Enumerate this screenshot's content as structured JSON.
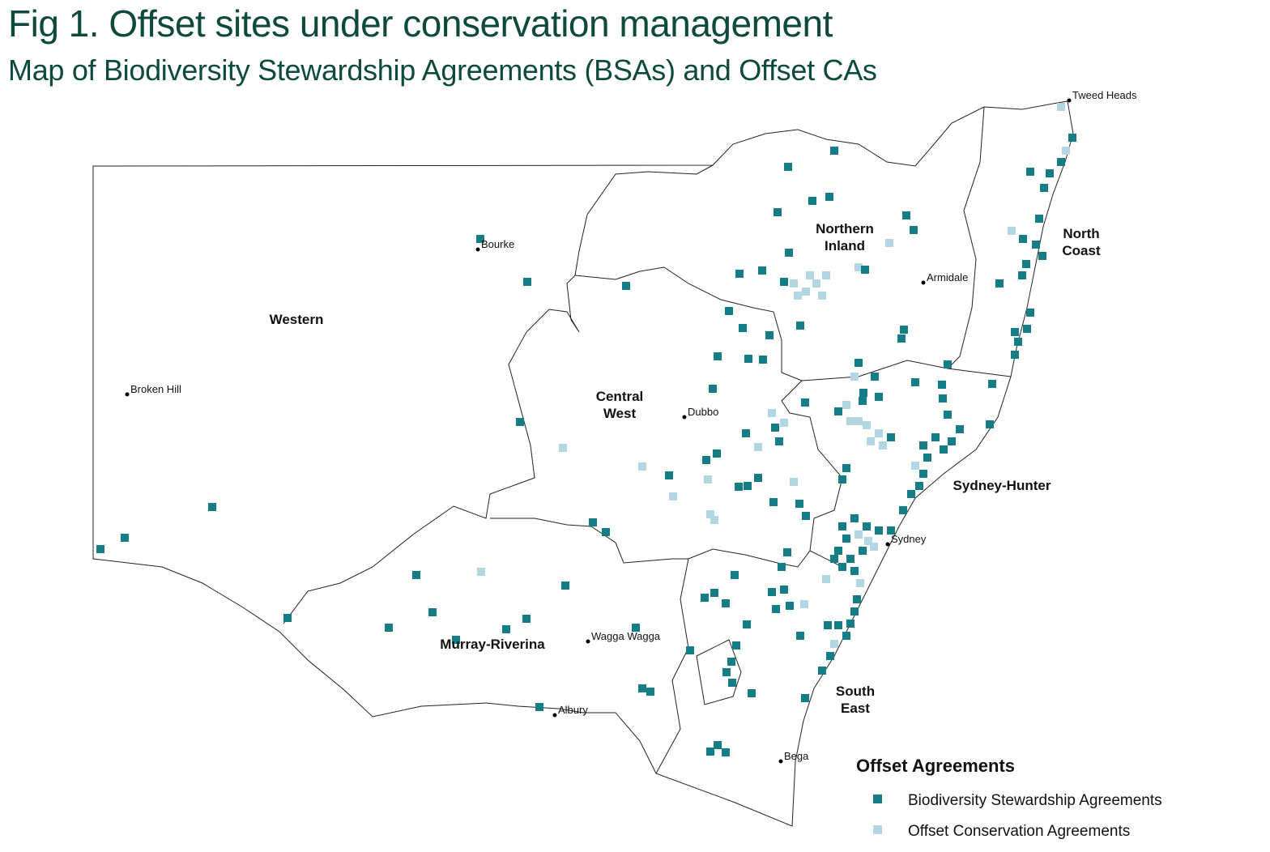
{
  "header": {
    "title": "Fig 1. Offset sites under conservation management",
    "subtitle": "Map of Biodiversity Stewardship Agreements (BSAs) and Offset CAs"
  },
  "regions": [
    {
      "lines": [
        "Western"
      ]
    },
    {
      "lines": [
        "Northern",
        "Inland"
      ]
    },
    {
      "lines": [
        "North",
        "Coast"
      ]
    },
    {
      "lines": [
        "Central",
        "West"
      ]
    },
    {
      "lines": [
        "Sydney-Hunter"
      ]
    },
    {
      "lines": [
        "Murray-Riverina"
      ]
    },
    {
      "lines": [
        "South",
        "East"
      ]
    }
  ],
  "towns": [
    "Tweed Heads",
    "Bourke",
    "Armidale",
    "Broken Hill",
    "Dubbo",
    "Sydney",
    "Wagga Wagga",
    "Albury",
    "Bega"
  ],
  "legend": {
    "title": "Offset Agreements",
    "items": [
      {
        "label": "Biodiversity Stewardship Agreements",
        "color": "#147d86"
      },
      {
        "label": "Offset Conservation Agreements",
        "color": "#b3d6e3"
      }
    ]
  }
}
